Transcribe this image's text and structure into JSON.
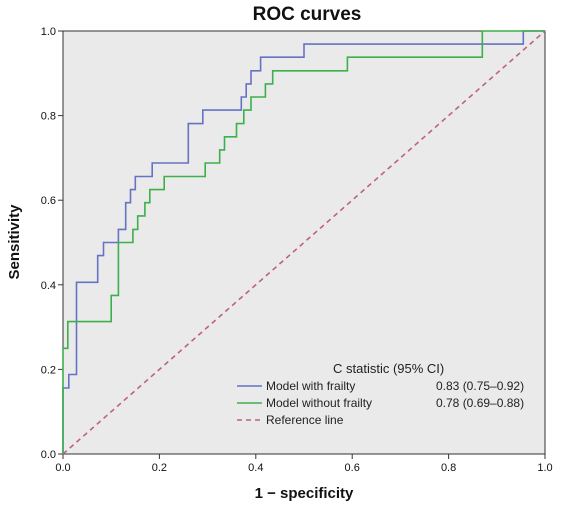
{
  "chart_data": {
    "type": "line",
    "title": "ROC curves",
    "xlabel": "1 − specificity",
    "ylabel": "Sensitivity",
    "xlim": [
      0,
      1
    ],
    "ylim": [
      0,
      1
    ],
    "x_ticks": [
      "0.0",
      "0.2",
      "0.4",
      "0.6",
      "0.8",
      "1.0"
    ],
    "y_ticks": [
      "0.0",
      "0.2",
      "0.4",
      "0.6",
      "0.8",
      "1.0"
    ],
    "background": "#eaeaea",
    "grid": false,
    "legend_placement": "bottom-right",
    "legend_header": "C statistic (95% CI)",
    "series": [
      {
        "name": "Model with frailty",
        "stat": "0.83 (0.75–0.92)",
        "color": "#6673c4",
        "style": "solid",
        "points": [
          [
            0,
            0
          ],
          [
            0,
            0.156
          ],
          [
            0.012,
            0.156
          ],
          [
            0.012,
            0.188
          ],
          [
            0.028,
            0.188
          ],
          [
            0.028,
            0.406
          ],
          [
            0.072,
            0.406
          ],
          [
            0.072,
            0.469
          ],
          [
            0.084,
            0.469
          ],
          [
            0.084,
            0.5
          ],
          [
            0.115,
            0.5
          ],
          [
            0.115,
            0.531
          ],
          [
            0.13,
            0.531
          ],
          [
            0.13,
            0.594
          ],
          [
            0.14,
            0.594
          ],
          [
            0.14,
            0.625
          ],
          [
            0.15,
            0.625
          ],
          [
            0.15,
            0.656
          ],
          [
            0.185,
            0.656
          ],
          [
            0.185,
            0.688
          ],
          [
            0.26,
            0.688
          ],
          [
            0.26,
            0.781
          ],
          [
            0.29,
            0.781
          ],
          [
            0.29,
            0.813
          ],
          [
            0.37,
            0.813
          ],
          [
            0.37,
            0.844
          ],
          [
            0.38,
            0.844
          ],
          [
            0.38,
            0.875
          ],
          [
            0.39,
            0.875
          ],
          [
            0.39,
            0.906
          ],
          [
            0.41,
            0.906
          ],
          [
            0.41,
            0.938
          ],
          [
            0.5,
            0.938
          ],
          [
            0.5,
            0.969
          ],
          [
            0.955,
            0.969
          ],
          [
            0.955,
            1
          ],
          [
            1,
            1
          ]
        ]
      },
      {
        "name": "Model without frailty",
        "stat": "0.78 (0.69–0.88)",
        "color": "#3cb04a",
        "style": "solid",
        "points": [
          [
            0,
            0
          ],
          [
            0,
            0.25
          ],
          [
            0.01,
            0.25
          ],
          [
            0.01,
            0.313
          ],
          [
            0.1,
            0.313
          ],
          [
            0.1,
            0.375
          ],
          [
            0.115,
            0.375
          ],
          [
            0.115,
            0.5
          ],
          [
            0.145,
            0.5
          ],
          [
            0.145,
            0.531
          ],
          [
            0.155,
            0.531
          ],
          [
            0.155,
            0.563
          ],
          [
            0.17,
            0.563
          ],
          [
            0.17,
            0.594
          ],
          [
            0.18,
            0.594
          ],
          [
            0.18,
            0.625
          ],
          [
            0.21,
            0.625
          ],
          [
            0.21,
            0.656
          ],
          [
            0.295,
            0.656
          ],
          [
            0.295,
            0.688
          ],
          [
            0.325,
            0.688
          ],
          [
            0.325,
            0.719
          ],
          [
            0.335,
            0.719
          ],
          [
            0.335,
            0.75
          ],
          [
            0.36,
            0.75
          ],
          [
            0.36,
            0.781
          ],
          [
            0.375,
            0.781
          ],
          [
            0.375,
            0.813
          ],
          [
            0.39,
            0.813
          ],
          [
            0.39,
            0.844
          ],
          [
            0.42,
            0.844
          ],
          [
            0.42,
            0.875
          ],
          [
            0.435,
            0.875
          ],
          [
            0.435,
            0.906
          ],
          [
            0.59,
            0.906
          ],
          [
            0.59,
            0.938
          ],
          [
            0.87,
            0.938
          ],
          [
            0.87,
            1
          ],
          [
            1,
            1
          ]
        ]
      },
      {
        "name": "Reference line",
        "color": "#c06080",
        "style": "dashed",
        "points": [
          [
            0,
            0
          ],
          [
            1,
            1
          ]
        ]
      }
    ]
  }
}
